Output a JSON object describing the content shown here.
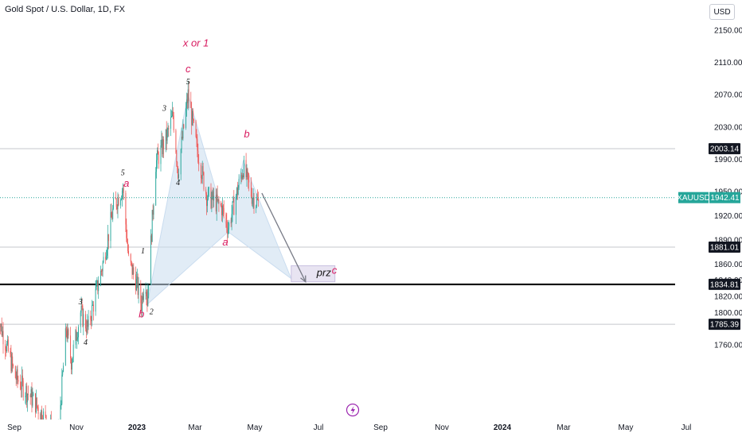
{
  "header": {
    "title": "Gold Spot / U.S. Dollar, 1D, FX",
    "currency": "USD"
  },
  "colors": {
    "up": "#26a69a",
    "down": "#ef5350",
    "pattern_fill": "#c9dcef",
    "prz_fill": "#e4dff0",
    "support_line": "#000000",
    "price_line": "#26a69a",
    "pink_label": "#d81b60",
    "purple_label": "#8e24aa"
  },
  "chart_data": {
    "type": "candlestick",
    "symbol": "XAUUSD",
    "timeframe": "1D",
    "ylim": [
      1740,
      2180
    ],
    "y_ticks": [
      2150,
      2110,
      2070,
      2030,
      1990,
      1950,
      1920,
      1890,
      1860,
      1840,
      1820,
      1800,
      1760
    ],
    "x_ticks": [
      "Sep",
      "Nov",
      "2023",
      "Mar",
      "May",
      "Jul",
      "Sep",
      "Nov",
      "2024",
      "Mar",
      "May",
      "Jul"
    ],
    "price_swings": [
      {
        "date": "2022-08-10",
        "price": 1800
      },
      {
        "date": "2022-09-05",
        "price": 1720
      },
      {
        "date": "2022-10-01",
        "price": 1690
      },
      {
        "date": "2022-10-25",
        "price": 1655
      },
      {
        "date": "2022-11-03",
        "price": 1640
      },
      {
        "date": "2022-11-15",
        "price": 1780
      },
      {
        "date": "2022-11-22",
        "price": 1740
      },
      {
        "date": "2022-12-05",
        "price": 1800
      },
      {
        "date": "2022-12-15",
        "price": 1780
      },
      {
        "date": "2023-01-05",
        "price": 1860
      },
      {
        "date": "2023-01-20",
        "price": 1930
      },
      {
        "date": "2023-02-02",
        "price": 1955
      },
      {
        "date": "2023-02-10",
        "price": 1865
      },
      {
        "date": "2023-02-20",
        "price": 1840
      },
      {
        "date": "2023-02-28",
        "price": 1810
      },
      {
        "date": "2023-03-05",
        "price": 1850
      },
      {
        "date": "2023-03-08",
        "price": 1815
      },
      {
        "date": "2023-03-20",
        "price": 1985
      },
      {
        "date": "2023-04-05",
        "price": 2020
      },
      {
        "date": "2023-04-13",
        "price": 2045
      },
      {
        "date": "2023-04-20",
        "price": 1975
      },
      {
        "date": "2023-05-04",
        "price": 2070
      },
      {
        "date": "2023-05-15",
        "price": 2010
      },
      {
        "date": "2023-05-30",
        "price": 1945
      },
      {
        "date": "2023-06-20",
        "price": 1930
      },
      {
        "date": "2023-06-29",
        "price": 1905
      },
      {
        "date": "2023-07-20",
        "price": 1980
      },
      {
        "date": "2023-08-01",
        "price": 1945
      },
      {
        "date": "2023-08-10",
        "price": 1935
      }
    ],
    "horizontal_levels": [
      {
        "price": 2003.14,
        "label": "2003.14",
        "style": "thin"
      },
      {
        "price": 1881.01,
        "label": "1881.01",
        "style": "thin"
      },
      {
        "price": 1834.81,
        "label": "1834.81",
        "style": "thick"
      },
      {
        "price": 1785.39,
        "label": "1785.39",
        "style": "thin"
      }
    ],
    "last_price": {
      "symbol": "XAUUSD",
      "price": 1942.41,
      "label": "1942.41"
    },
    "pattern": {
      "points": [
        {
          "date": "2023-03-08",
          "price": 1810
        },
        {
          "date": "2023-05-04",
          "price": 2070
        },
        {
          "date": "2023-06-29",
          "price": 1900
        },
        {
          "date": "2023-07-20",
          "price": 1988
        },
        {
          "date": "2023-09-25",
          "price": 1842
        }
      ]
    },
    "projection": {
      "from": {
        "date": "2023-08-15",
        "price": 1948
      },
      "to": {
        "date": "2023-10-15",
        "price": 1838
      }
    },
    "prz_box": {
      "label": "prz",
      "wave": "c",
      "date_from": "2023-09-25",
      "date_to": "2023-11-25",
      "price_top": 1858,
      "price_bottom": 1838
    },
    "wave_labels": [
      {
        "text": "x or 1",
        "date": "2023-05-15",
        "price": 2130,
        "style": "pink-large"
      },
      {
        "text": "c",
        "date": "2023-05-04",
        "price": 2098,
        "style": "purple"
      },
      {
        "text": "5",
        "date": "2023-05-04",
        "price": 2083,
        "style": "black"
      },
      {
        "text": "3",
        "date": "2023-04-01",
        "price": 2050,
        "style": "black"
      },
      {
        "text": "4",
        "date": "2023-04-20",
        "price": 1958,
        "style": "black"
      },
      {
        "text": "b",
        "date": "2023-07-25",
        "price": 2017,
        "style": "pink"
      },
      {
        "text": "a",
        "date": "2023-06-25",
        "price": 1883,
        "style": "pink"
      },
      {
        "text": "5",
        "date": "2023-02-02",
        "price": 1970,
        "style": "black"
      },
      {
        "text": "a",
        "date": "2023-02-07",
        "price": 1956,
        "style": "purple"
      },
      {
        "text": "1",
        "date": "2023-03-02",
        "price": 1873,
        "style": "black"
      },
      {
        "text": "3",
        "date": "2022-12-05",
        "price": 1810,
        "style": "black"
      },
      {
        "text": "4",
        "date": "2022-12-12",
        "price": 1760,
        "style": "black"
      },
      {
        "text": "b",
        "date": "2023-02-28",
        "price": 1794,
        "style": "purple"
      },
      {
        "text": "2",
        "date": "2023-03-14",
        "price": 1798,
        "style": "black"
      }
    ]
  }
}
